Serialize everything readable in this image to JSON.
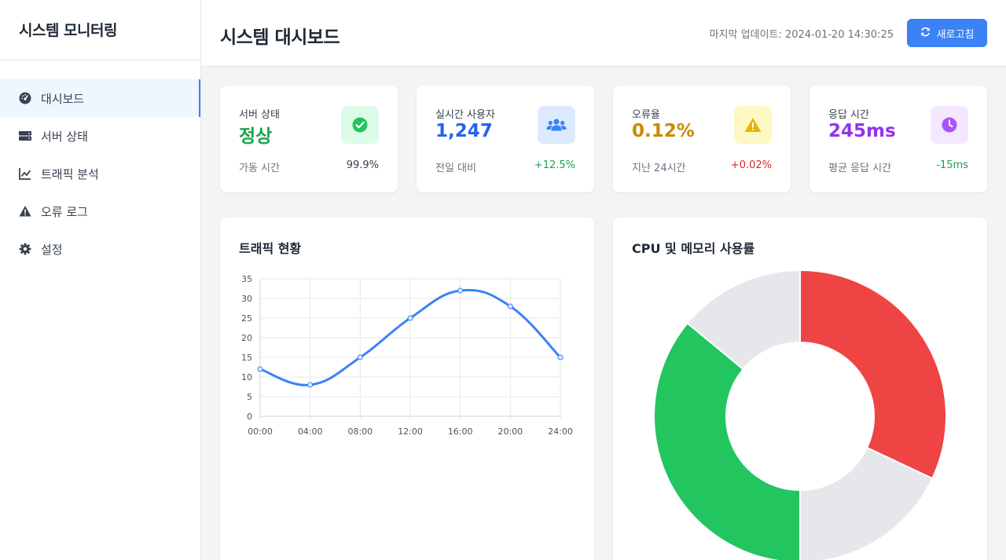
{
  "sidebar": {
    "title": "시스템 모니터링",
    "items": [
      {
        "label": "대시보드",
        "icon": "tachometer-icon",
        "active": true
      },
      {
        "label": "서버 상태",
        "icon": "server-icon",
        "active": false
      },
      {
        "label": "트래픽 분석",
        "icon": "chart-line-icon",
        "active": false
      },
      {
        "label": "오류 로그",
        "icon": "warning-icon",
        "active": false
      },
      {
        "label": "설정",
        "icon": "gear-icon",
        "active": false
      }
    ]
  },
  "header": {
    "title": "시스템 대시보드",
    "last_update": "마지막 업데이트: 2024-01-20 14:30:25",
    "refresh_label": "새로고침"
  },
  "stats": [
    {
      "label": "서버 상태",
      "value": "정상",
      "value_color": "#16a34a",
      "icon": "check-circle-icon",
      "icon_bg": "#dcfce7",
      "icon_color": "#22c55e",
      "foot_label": "가동 시간",
      "foot_value": "99.9%",
      "foot_color": "#374151"
    },
    {
      "label": "실시간 사용자",
      "value": "1,247",
      "value_color": "#2563eb",
      "icon": "users-icon",
      "icon_bg": "#dbeafe",
      "icon_color": "#3b82f6",
      "foot_label": "전일 대비",
      "foot_value": "+12.5%",
      "foot_color": "#16a34a"
    },
    {
      "label": "오류율",
      "value": "0.12%",
      "value_color": "#ca8a04",
      "icon": "warning-icon",
      "icon_bg": "#fef9c3",
      "icon_color": "#eab308",
      "foot_label": "지난 24시간",
      "foot_value": "+0.02%",
      "foot_color": "#dc2626"
    },
    {
      "label": "응답 시간",
      "value": "245ms",
      "value_color": "#9333ea",
      "icon": "clock-icon",
      "icon_bg": "#f3e8ff",
      "icon_color": "#a855f7",
      "foot_label": "평균 응답 시간",
      "foot_value": "-15ms",
      "foot_color": "#16a34a"
    }
  ],
  "panels": {
    "traffic_title": "트래픽 현황",
    "resource_title": "CPU 및 메모리 사용률"
  },
  "chart_data": [
    {
      "type": "line",
      "title": "트래픽 현황",
      "x": [
        "00:00",
        "04:00",
        "08:00",
        "12:00",
        "16:00",
        "20:00",
        "24:00"
      ],
      "series": [
        {
          "values": [
            12,
            8,
            15,
            25,
            32,
            28,
            15
          ],
          "color": "#3b82f6"
        }
      ],
      "ylim": [
        0,
        35
      ],
      "yticks": [
        0,
        5,
        10,
        15,
        20,
        25,
        30,
        35
      ],
      "grid": true
    },
    {
      "type": "pie",
      "title": "CPU 및 메모리 사용률",
      "donut": true,
      "slices": [
        {
          "value": 32,
          "color": "#ef4444"
        },
        {
          "value": 18,
          "color": "#e5e7eb"
        },
        {
          "value": 36,
          "color": "#22c55e"
        },
        {
          "value": 14,
          "color": "#e5e7eb"
        }
      ]
    }
  ]
}
